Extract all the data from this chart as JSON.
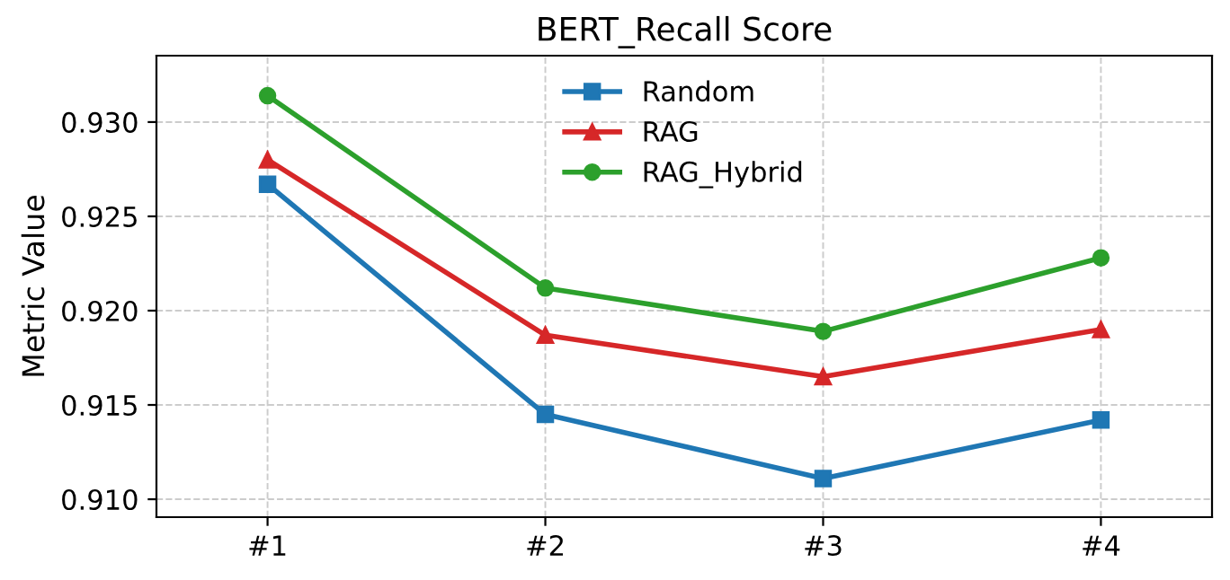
{
  "chart_data": {
    "type": "line",
    "title": "BERT_Recall Score",
    "ylabel": "Metric Value",
    "categories": [
      "#1",
      "#2",
      "#3",
      "#4"
    ],
    "series": [
      {
        "name": "Random",
        "color": "#1f77b4",
        "marker": "square",
        "values": [
          0.9267,
          0.9145,
          0.9111,
          0.9142
        ]
      },
      {
        "name": "RAG",
        "color": "#d62728",
        "marker": "triangle",
        "values": [
          0.928,
          0.9187,
          0.9165,
          0.919
        ]
      },
      {
        "name": "RAG_Hybrid",
        "color": "#2ca02c",
        "marker": "circle",
        "values": [
          0.9314,
          0.9212,
          0.9189,
          0.9228
        ]
      }
    ],
    "ylim": [
      0.90905,
      0.93352
    ],
    "yticks": [
      {
        "value": 0.91,
        "label": "0.910"
      },
      {
        "value": 0.915,
        "label": "0.915"
      },
      {
        "value": 0.92,
        "label": "0.920"
      },
      {
        "value": 0.925,
        "label": "0.925"
      },
      {
        "value": 0.93,
        "label": "0.930"
      }
    ],
    "grid": true,
    "legend": "top",
    "line_style": "solid"
  }
}
